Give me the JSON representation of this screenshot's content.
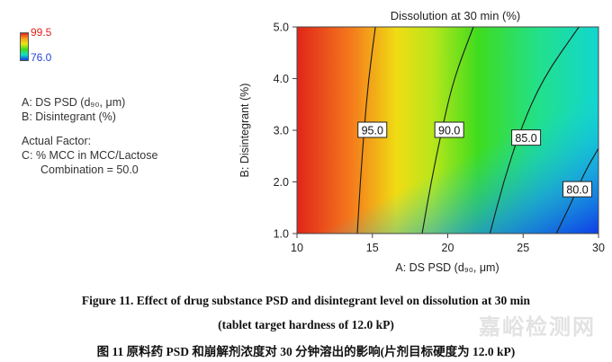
{
  "legend": {
    "scale_max": "99.5",
    "scale_min": "76.0",
    "factor_a": "A: DS PSD (d₉₀, μm)",
    "factor_b": "B: Disintegrant (%)",
    "actual_factor_title": "Actual Factor:",
    "factor_c": "C: % MCC in MCC/Lactose",
    "factor_c_value": "Combination = 50.0"
  },
  "chart_data": {
    "type": "heatmap",
    "title": "Dissolution at 30 min (%)",
    "xlabel": "A: DS PSD (d₉₀, μm)",
    "ylabel": "B: Disintegrant (%)",
    "xlim": [
      10,
      30
    ],
    "ylim": [
      1.0,
      5.0
    ],
    "x_ticks": [
      "10",
      "15",
      "20",
      "25",
      "30"
    ],
    "y_ticks": [
      "1.0",
      "2.0",
      "3.0",
      "4.0",
      "5.0"
    ],
    "color_scale": {
      "min": 76.0,
      "max": 99.5,
      "colors": [
        "#0f3ce6",
        "#12e0c8",
        "#3fdc1e",
        "#e8e812",
        "#f7a21d",
        "#e0251a"
      ]
    },
    "contours": [
      {
        "level": 95.0,
        "label": "95.0",
        "points": [
          [
            14.0,
            1.0
          ],
          [
            14.2,
            2.0
          ],
          [
            14.45,
            3.0
          ],
          [
            14.75,
            4.0
          ],
          [
            15.2,
            5.0
          ]
        ],
        "label_at": [
          15.0,
          3.0
        ]
      },
      {
        "level": 90.0,
        "label": "90.0",
        "points": [
          [
            18.3,
            1.0
          ],
          [
            18.9,
            2.0
          ],
          [
            19.6,
            3.0
          ],
          [
            20.4,
            4.0
          ],
          [
            21.7,
            5.0
          ]
        ],
        "label_at": [
          20.1,
          3.0
        ]
      },
      {
        "level": 85.0,
        "label": "85.0",
        "points": [
          [
            22.8,
            1.0
          ],
          [
            23.7,
            2.0
          ],
          [
            24.8,
            3.0
          ],
          [
            26.3,
            4.0
          ],
          [
            28.7,
            5.0
          ]
        ],
        "label_at": [
          25.2,
          2.85
        ]
      },
      {
        "level": 80.0,
        "label": "80.0",
        "points": [
          [
            27.2,
            1.0
          ],
          [
            28.2,
            1.6
          ],
          [
            29.1,
            2.2
          ],
          [
            30.0,
            2.65
          ]
        ],
        "label_at": [
          28.6,
          1.85
        ]
      }
    ]
  },
  "captions": {
    "line1": "Figure 11. Effect of drug substance PSD and disintegrant level on dissolution at 30 min",
    "line2": "(tablet target hardness of 12.0 kP)",
    "line3": "图 11  原料药 PSD 和崩解剂浓度对 30 分钟溶出的影响(片剂目标硬度为 12.0 kP)"
  },
  "watermark": "嘉峪检测网"
}
